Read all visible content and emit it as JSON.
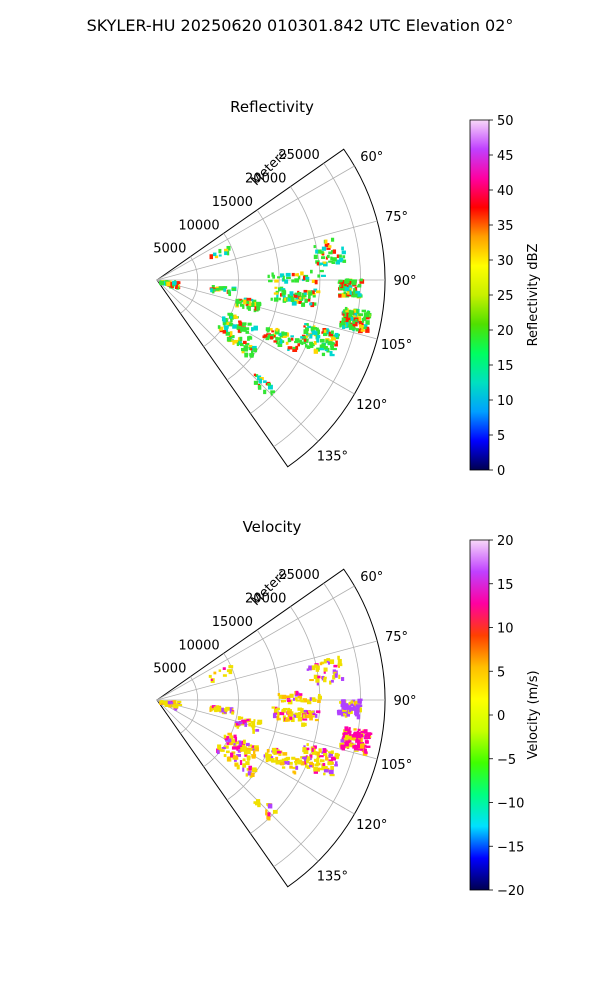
{
  "suptitle": "SKYLER-HU  20250620  010301.842 UTC Elevation 02°",
  "chart_data": [
    {
      "type": "polar-sector",
      "title": "Reflectivity",
      "radial_label": "Meters",
      "radial_ticks": [
        5000,
        10000,
        15000,
        20000,
        25000
      ],
      "rmax": 28000,
      "azimuth_range": [
        55,
        145
      ],
      "angle_ticks": [
        "60°",
        "75°",
        "90°",
        "105°",
        "120°",
        "135°"
      ],
      "grid": true,
      "colorbar": {
        "label": "Reflectivity dBZ",
        "range": [
          0,
          50
        ],
        "ticks": [
          "0",
          "5",
          "10",
          "15",
          "20",
          "25",
          "30",
          "35",
          "40",
          "45",
          "50"
        ]
      },
      "colors": {
        "weak": "#00d8d0",
        "moderate": "#33e633",
        "strong": "#ffd700",
        "peak": "#ff2000"
      }
    },
    {
      "type": "polar-sector",
      "title": "Velocity",
      "radial_label": "Meters",
      "radial_ticks": [
        5000,
        10000,
        15000,
        20000,
        25000
      ],
      "rmax": 28000,
      "azimuth_range": [
        55,
        145
      ],
      "angle_ticks": [
        "60°",
        "75°",
        "90°",
        "105°",
        "120°",
        "135°"
      ],
      "grid": true,
      "colorbar": {
        "label": "Velocity (m/s)",
        "range": [
          -20,
          20
        ],
        "ticks": [
          "−20",
          "−15",
          "−10",
          "−5",
          "0",
          "5",
          "10",
          "15",
          "20"
        ]
      },
      "colors": {
        "near_zero": "#f0e000",
        "small_positive": "#ffc000",
        "large_positive": "#ff00aa",
        "purple": "#b040ff"
      }
    }
  ]
}
